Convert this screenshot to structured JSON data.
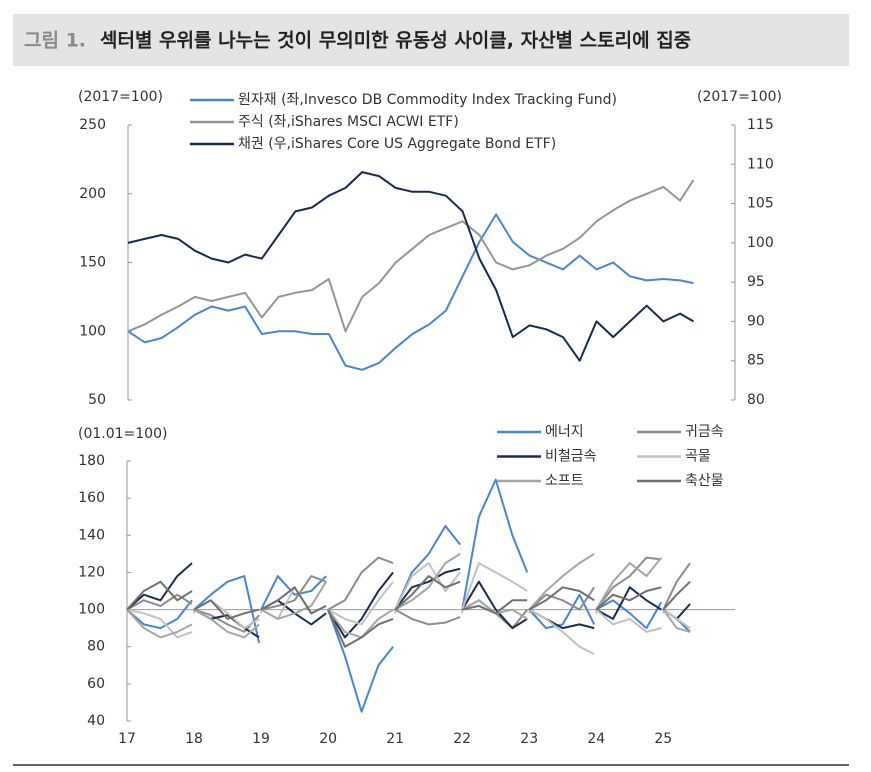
{
  "header": {
    "label": "그림 1.",
    "title": "섹터별 우위를 나누는 것이 무의미한 유동성 사이클, 자산별 스토리에 집중"
  },
  "chart_data": [
    {
      "type": "line",
      "ylabel": "(2017=100)",
      "y2label": "(2017=100)",
      "x": [
        17,
        17.25,
        17.5,
        17.75,
        18,
        18.25,
        18.5,
        18.75,
        19,
        19.25,
        19.5,
        19.75,
        20,
        20.25,
        20.5,
        20.75,
        21,
        21.25,
        21.5,
        21.75,
        22,
        22.25,
        22.5,
        22.75,
        23,
        23.25,
        23.5,
        23.75,
        24,
        24.25,
        24.5,
        24.75,
        25,
        25.25,
        25.45
      ],
      "xlim": [
        17,
        26.07
      ],
      "ylim": [
        50,
        250
      ],
      "yticks": [
        50,
        100,
        150,
        200,
        250
      ],
      "y2lim": [
        80,
        115
      ],
      "y2ticks": [
        80,
        85,
        90,
        95,
        100,
        105,
        110,
        115
      ],
      "series": [
        {
          "name": "원자재 (좌,Invesco DB Commodity Index Tracking Fund)",
          "color": "#4a86c8",
          "values": [
            100,
            92,
            95,
            103,
            112,
            118,
            115,
            118,
            98,
            100,
            100,
            98,
            98,
            75,
            72,
            77,
            88,
            98,
            105,
            115,
            140,
            165,
            185,
            165,
            155,
            150,
            145,
            155,
            145,
            150,
            140,
            137,
            138,
            137,
            135
          ]
        },
        {
          "name": "주식 (좌,iShares MSCI ACWI ETF)",
          "color": "#959595",
          "values": [
            100,
            105,
            112,
            118,
            125,
            122,
            125,
            128,
            110,
            125,
            128,
            130,
            138,
            100,
            125,
            135,
            150,
            160,
            170,
            175,
            180,
            170,
            150,
            145,
            148,
            155,
            160,
            168,
            180,
            188,
            195,
            200,
            205,
            195,
            210
          ]
        },
        {
          "name": "채권 (우,iShares Core US Aggregate Bond ETF)",
          "color": "#172b4d",
          "axis": "y2",
          "values": [
            100,
            100.5,
            101,
            100.5,
            99,
            98,
            97.5,
            98.5,
            98,
            101,
            104,
            104.5,
            106,
            107,
            109,
            108.5,
            107,
            106.5,
            106.5,
            106,
            104,
            98,
            94,
            88,
            89.5,
            89,
            88,
            85,
            90,
            88,
            90,
            92,
            90,
            91,
            90
          ]
        }
      ]
    },
    {
      "type": "line",
      "ylabel": "(01.01=100)",
      "baseline": 100,
      "x": [
        17,
        17.25,
        17.5,
        17.75,
        17.97,
        17.985,
        18,
        18.25,
        18.5,
        18.75,
        18.97,
        18.985,
        19,
        19.25,
        19.5,
        19.75,
        19.97,
        19.985,
        20,
        20.25,
        20.5,
        20.75,
        20.97,
        20.985,
        21,
        21.25,
        21.5,
        21.75,
        21.97,
        21.985,
        22,
        22.25,
        22.5,
        22.75,
        22.97,
        22.985,
        23,
        23.25,
        23.5,
        23.75,
        23.97,
        23.985,
        24,
        24.25,
        24.5,
        24.75,
        24.97,
        24.985,
        25,
        25.2,
        25.4
      ],
      "xlim": [
        17,
        26.07
      ],
      "xticks": [
        {
          "value": 17,
          "label": "17"
        },
        {
          "value": 18,
          "label": "18"
        },
        {
          "value": 19,
          "label": "19"
        },
        {
          "value": 20,
          "label": "20"
        },
        {
          "value": 21,
          "label": "21"
        },
        {
          "value": 22,
          "label": "22"
        },
        {
          "value": 23,
          "label": "23"
        },
        {
          "value": 24,
          "label": "24"
        },
        {
          "value": 25,
          "label": "25"
        }
      ],
      "ylim": [
        40,
        180
      ],
      "yticks": [
        40,
        60,
        80,
        100,
        120,
        140,
        160,
        180
      ],
      "series": [
        {
          "name": "에너지",
          "color": "#4a86c8",
          "values": [
            100,
            92,
            90,
            95,
            105,
            null,
            100,
            108,
            115,
            118,
            82,
            null,
            100,
            118,
            108,
            110,
            118,
            null,
            100,
            75,
            45,
            70,
            80,
            null,
            100,
            120,
            130,
            145,
            135,
            null,
            100,
            150,
            170,
            140,
            120,
            null,
            100,
            90,
            92,
            108,
            92,
            null,
            100,
            105,
            98,
            90,
            104,
            null,
            100,
            95,
            88
          ]
        },
        {
          "name": "귀금속",
          "color": "#8c8c8c",
          "values": [
            100,
            105,
            102,
            108,
            103,
            null,
            100,
            97,
            92,
            88,
            97,
            null,
            100,
            102,
            105,
            118,
            115,
            null,
            100,
            105,
            120,
            128,
            125,
            null,
            100,
            95,
            92,
            93,
            96,
            null,
            100,
            105,
            98,
            90,
            100,
            null,
            100,
            108,
            105,
            100,
            112,
            null,
            100,
            112,
            118,
            128,
            127,
            null,
            100,
            115,
            125
          ]
        },
        {
          "name": "비철금속",
          "color": "#1a2e50",
          "values": [
            100,
            108,
            105,
            118,
            125,
            null,
            100,
            95,
            97,
            90,
            85,
            null,
            100,
            105,
            98,
            92,
            98,
            null,
            100,
            85,
            95,
            110,
            120,
            null,
            100,
            112,
            115,
            120,
            122,
            null,
            100,
            115,
            100,
            90,
            95,
            null,
            100,
            95,
            90,
            92,
            90,
            null,
            100,
            95,
            112,
            105,
            100,
            null,
            100,
            95,
            103
          ]
        },
        {
          "name": "곡물",
          "color": "#c2c2c2",
          "values": [
            100,
            98,
            95,
            85,
            88,
            null,
            100,
            105,
            98,
            90,
            95,
            null,
            100,
            95,
            112,
            98,
            102,
            null,
            100,
            95,
            92,
            105,
            115,
            null,
            100,
            118,
            125,
            110,
            120,
            null,
            100,
            125,
            120,
            115,
            110,
            null,
            100,
            95,
            88,
            80,
            76,
            null,
            100,
            92,
            95,
            88,
            90,
            null,
            100,
            95,
            90
          ]
        },
        {
          "name": "소프트",
          "color": "#a6a6a6",
          "values": [
            100,
            90,
            85,
            88,
            92,
            null,
            100,
            95,
            88,
            85,
            92,
            null,
            100,
            95,
            98,
            102,
            115,
            null,
            100,
            88,
            85,
            95,
            100,
            null,
            100,
            105,
            112,
            125,
            130,
            null,
            100,
            105,
            98,
            100,
            95,
            null,
            100,
            110,
            118,
            125,
            130,
            null,
            100,
            115,
            125,
            118,
            128,
            null,
            100,
            90,
            88
          ]
        },
        {
          "name": "축산물",
          "color": "#707070",
          "values": [
            100,
            110,
            115,
            105,
            110,
            null,
            100,
            105,
            95,
            98,
            100,
            null,
            100,
            105,
            112,
            98,
            102,
            null,
            100,
            80,
            85,
            92,
            95,
            null,
            100,
            108,
            118,
            112,
            115,
            null,
            100,
            102,
            98,
            105,
            105,
            null,
            100,
            105,
            112,
            110,
            105,
            null,
            100,
            108,
            105,
            110,
            112,
            null,
            100,
            108,
            115
          ]
        }
      ]
    }
  ]
}
